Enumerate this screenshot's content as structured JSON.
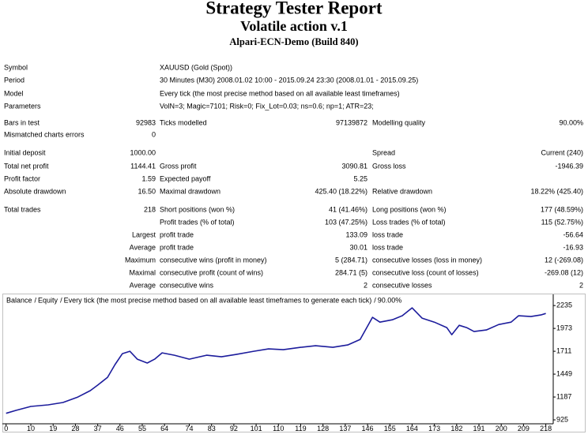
{
  "header": {
    "title": "Strategy Tester Report",
    "subtitle": "Volatile action v.1",
    "server": "Alpari-ECN-Demo (Build 840)"
  },
  "report": {
    "rows": [
      {
        "label": "Symbol",
        "wide": "XAUUSD (Gold (Spot))"
      },
      {
        "label": "Period",
        "wide": "30 Minutes (M30) 2008.01.02 10:00 - 2015.09.24 23:30 (2008.01.01 - 2015.09.25)"
      },
      {
        "label": "Model",
        "wide": "Every tick (the most precise method based on all available least timeframes)"
      },
      {
        "label": "Parameters",
        "wide": "VolN=3; Magic=7101; Risk=0; Fix_Lot=0.03; ns=0.6; np=1; ATR=23;"
      },
      {
        "label": "Bars in test",
        "value": "92983",
        "label2": "Ticks modelled",
        "value2": "97139872",
        "label3": "Modelling quality",
        "value3": "90.00%"
      },
      {
        "label": "Mismatched charts errors",
        "value": "0"
      },
      {
        "label": "Initial deposit",
        "value": "1000.00",
        "label3": "Spread",
        "value3": "Current (240)"
      },
      {
        "label": "Total net profit",
        "value": "1144.41",
        "label2": "Gross profit",
        "value2": "3090.81",
        "label3": "Gross loss",
        "value3": "-1946.39"
      },
      {
        "label": "Profit factor",
        "value": "1.59",
        "label2": "Expected payoff",
        "value2": "5.25"
      },
      {
        "label": "Absolute drawdown",
        "value": "16.50",
        "label2": "Maximal drawdown",
        "value2": "425.40 (18.22%)",
        "label3": "Relative drawdown",
        "value3": "18.22% (425.40)"
      },
      {
        "label": "Total trades",
        "value": "218",
        "label2": "Short positions (won %)",
        "value2": "41 (41.46%)",
        "label3": "Long positions (won %)",
        "value3": "177 (48.59%)"
      },
      {
        "label2": "Profit trades (% of total)",
        "value2": "103 (47.25%)",
        "label3": "Loss trades (% of total)",
        "value3": "115 (52.75%)"
      },
      {
        "value": "Largest",
        "label2": "profit trade",
        "value2": "133.09",
        "label3": "loss trade",
        "value3": "-56.64"
      },
      {
        "value": "Average",
        "label2": "profit trade",
        "value2": "30.01",
        "label3": "loss trade",
        "value3": "-16.93"
      },
      {
        "value": "Maximum",
        "label2": "consecutive wins (profit in money)",
        "value2": "5 (284.71)",
        "label3": "consecutive losses (loss in money)",
        "value3": "12 (-269.08)"
      },
      {
        "value": "Maximal",
        "label2": "consecutive profit (count of wins)",
        "value2": "284.71 (5)",
        "label3": "consecutive loss (count of losses)",
        "value3": "-269.08 (12)"
      },
      {
        "value": "Average",
        "label2": "consecutive wins",
        "value2": "2",
        "label3": "consecutive losses",
        "value3": "2"
      }
    ]
  },
  "chart_data": {
    "type": "line",
    "legend": [
      {
        "text": "Balance",
        "color": "#000080"
      },
      {
        "text": "Equity",
        "color": "#008000"
      },
      {
        "text": "Every tick (the most precise method based on all available least timeframes to generate each tick)",
        "color": "#000000"
      },
      {
        "text": "90.00%",
        "color": "#000000"
      }
    ],
    "legend_separator": "/",
    "x": [
      0,
      4,
      10,
      17,
      23,
      29,
      34,
      37,
      41,
      44,
      47,
      50,
      53,
      57,
      60,
      63,
      68,
      74,
      81,
      87,
      93,
      100,
      106,
      112,
      119,
      125,
      132,
      138,
      143,
      148,
      151,
      156,
      160,
      164,
      168,
      173,
      178,
      180,
      183,
      186,
      189,
      194,
      199,
      204,
      207,
      212,
      216,
      218
    ],
    "series": [
      {
        "name": "Balance",
        "color": "#1c1c9c",
        "values": [
          1000,
          1034,
          1079,
          1097,
          1124,
          1187,
          1260,
          1323,
          1413,
          1558,
          1684,
          1711,
          1621,
          1576,
          1621,
          1693,
          1666,
          1621,
          1666,
          1648,
          1675,
          1711,
          1738,
          1729,
          1756,
          1774,
          1756,
          1783,
          1847,
          2100,
          2045,
          2072,
          2118,
          2208,
          2091,
          2045,
          1982,
          1901,
          2009,
          1982,
          1937,
          1955,
          2018,
          2045,
          2118,
          2109,
          2127,
          2144
        ]
      }
    ],
    "xlim": [
      -1.5,
      221
    ],
    "ylim": [
      880,
      2345
    ],
    "xticks": [
      0,
      10,
      19,
      28,
      37,
      46,
      55,
      64,
      74,
      83,
      92,
      101,
      110,
      119,
      128,
      137,
      146,
      155,
      164,
      173,
      182,
      191,
      200,
      209,
      218
    ],
    "yticks": [
      925,
      1187,
      1449,
      1711,
      1973,
      2235
    ]
  }
}
